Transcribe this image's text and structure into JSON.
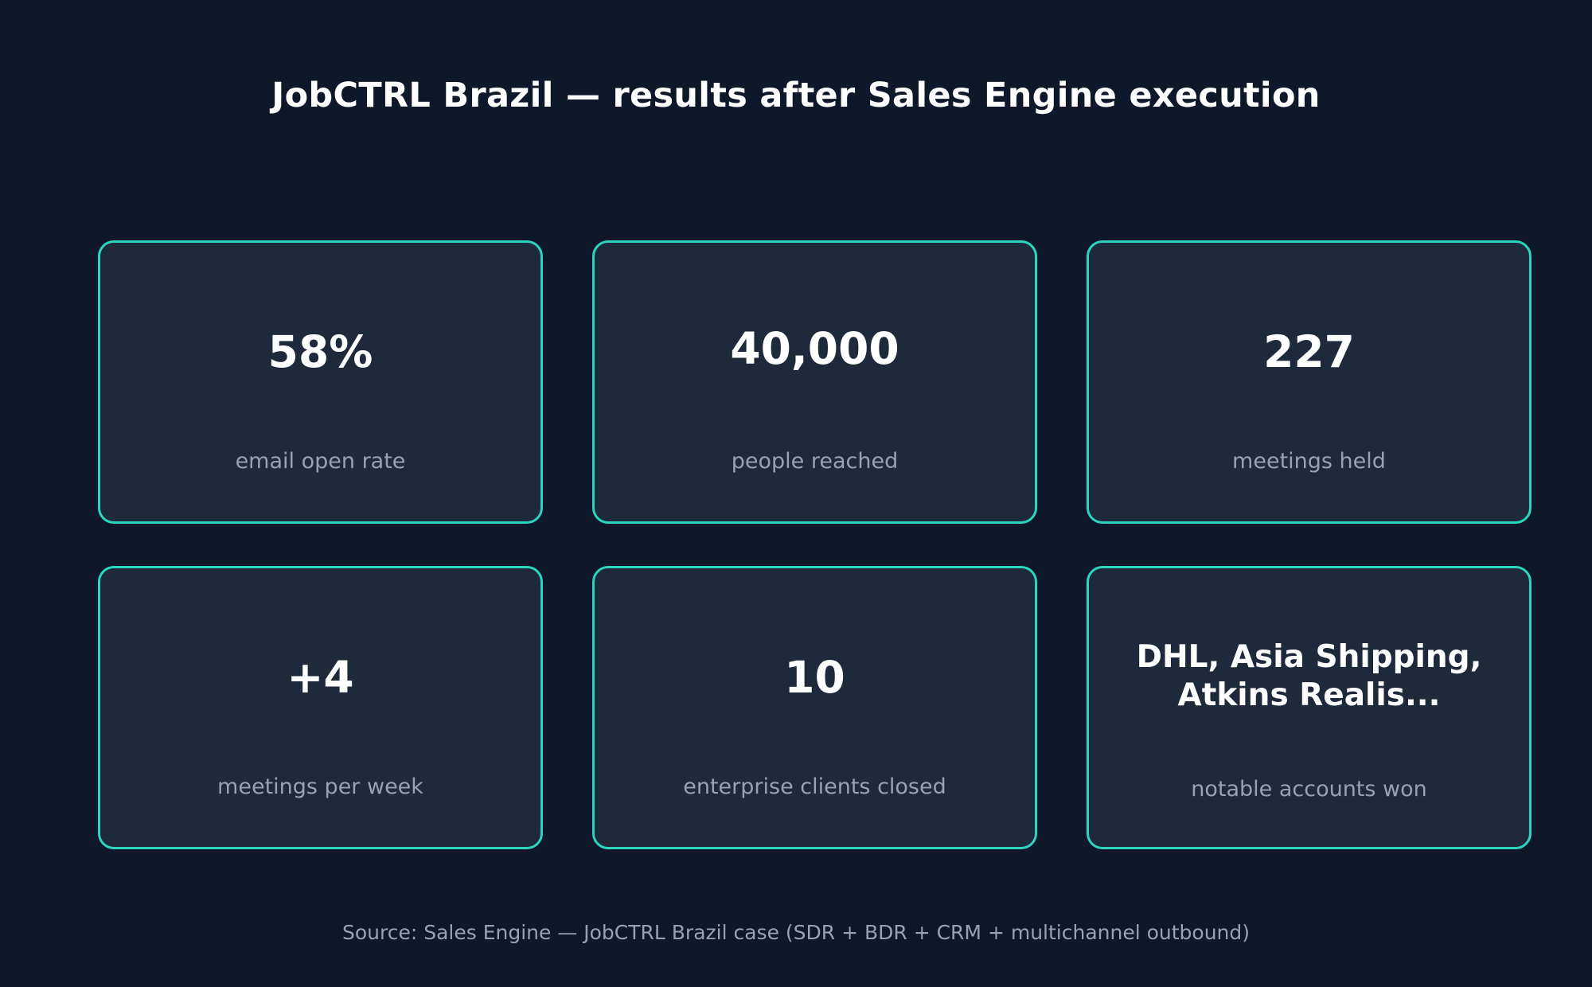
{
  "title": "JobCTRL Brazil — results after Sales Engine execution",
  "cards": [
    {
      "value": "58%",
      "label": "email open rate"
    },
    {
      "value": "40,000",
      "label": "people reached"
    },
    {
      "value": "227",
      "label": "meetings held"
    },
    {
      "value": "+4",
      "label": "meetings per week"
    },
    {
      "value": "10",
      "label": "enterprise clients closed"
    },
    {
      "value": "DHL, Asia Shipping,\nAtkins Realis...",
      "label": "notable accounts won"
    }
  ],
  "source": "Source: Sales Engine — JobCTRL Brazil case (SDR + BDR + CRM + multichannel outbound)",
  "colors": {
    "background": "#0f172a",
    "card": "#1e293b",
    "accent": "#2dd4bf",
    "muted": "#94a3b8",
    "text": "#ffffff"
  }
}
